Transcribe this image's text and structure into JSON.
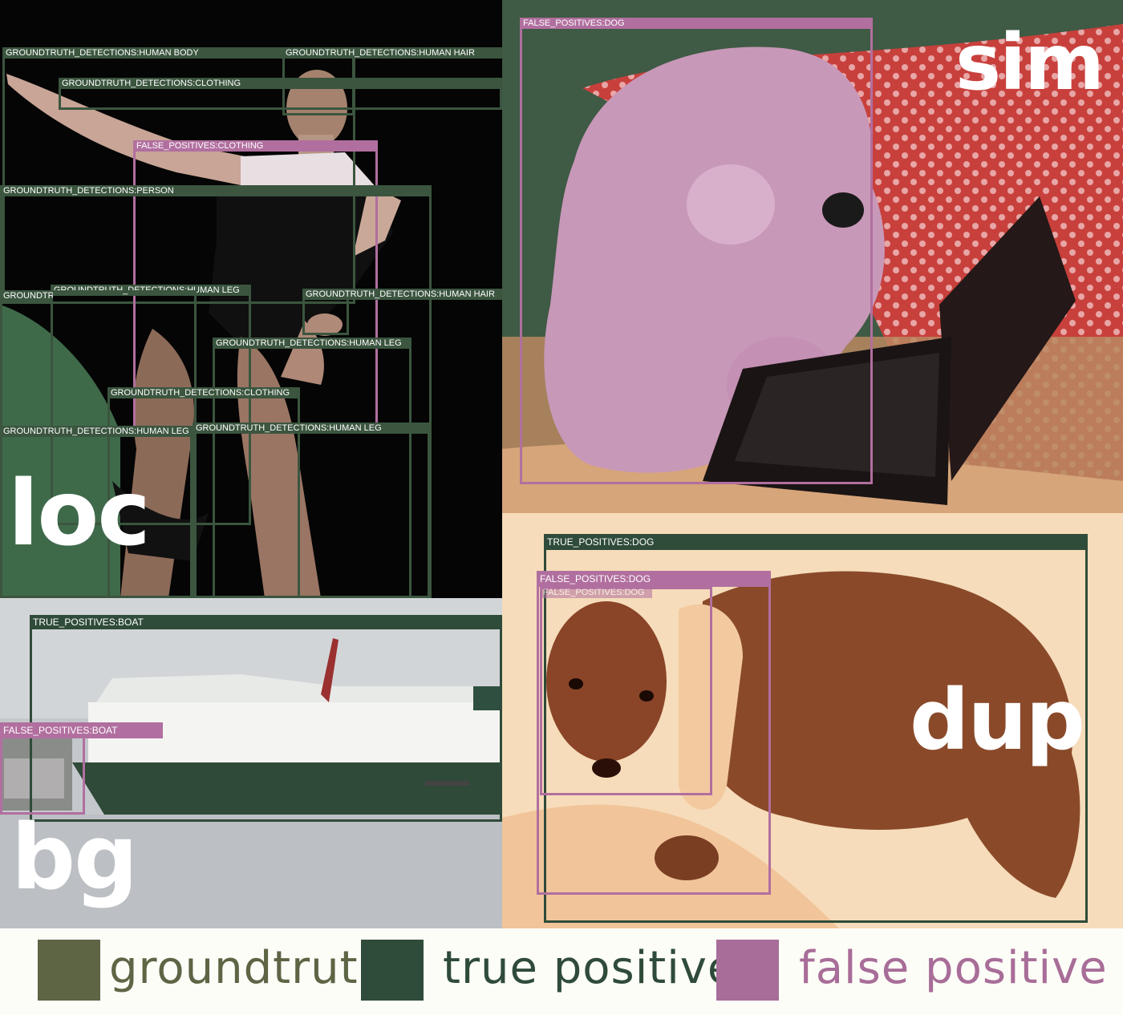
{
  "panels": {
    "loc": {
      "label": "loc",
      "boxes": [
        {
          "kind": "gt",
          "text": "GROUNDTRUTH_DETECTIONS:HUMAN BODY"
        },
        {
          "kind": "gt",
          "text": "GROUNDTRUTH_DETECTIONS:HUMAN HAIR"
        },
        {
          "kind": "gt",
          "text": "GROUNDTRUTH_DETECTIONS:CLOTHING"
        },
        {
          "kind": "fp",
          "text": "FALSE_POSITIVES:CLOTHING"
        },
        {
          "kind": "gt",
          "text": "GROUNDTRUTH_DETECTIONS:PERSON"
        },
        {
          "kind": "gt",
          "text": "GROUNDTRUTH_DETECTIONS:HUMAN LEG"
        },
        {
          "kind": "gt",
          "text": "GROUNDTRUTH_DETECTIONS:HUMAN BODY"
        },
        {
          "kind": "gt",
          "text": "GROUNDTRUTH_DETECTIONS:HUMAN HAIR"
        },
        {
          "kind": "gt",
          "text": "GROUNDTRUTH_DETECTIONS:HUMAN LEG"
        },
        {
          "kind": "gt",
          "text": "GROUNDTRUTH_DETECTIONS:CLOTHING"
        },
        {
          "kind": "gt",
          "text": "GROUNDTRUTH_DETECTIONS:HUMAN LEG"
        },
        {
          "kind": "gt",
          "text": "GROUNDTRUTH_DETECTIONS:HUMAN LEG"
        }
      ]
    },
    "sim": {
      "label": "sim",
      "boxes": [
        {
          "kind": "fp",
          "text": "FALSE_POSITIVES:DOG"
        }
      ]
    },
    "bg": {
      "label": "bg",
      "boxes": [
        {
          "kind": "tp",
          "text": "TRUE_POSITIVES:BOAT"
        },
        {
          "kind": "fp",
          "text": "FALSE_POSITIVES:BOAT"
        }
      ]
    },
    "dup": {
      "label": "dup",
      "boxes": [
        {
          "kind": "tp",
          "text": "TRUE_POSITIVES:DOG"
        },
        {
          "kind": "fp",
          "text": "FALSE_POSITIVES:DOG"
        },
        {
          "kind": "fp",
          "text": "FALSE_POSITIVES:DOG"
        }
      ]
    }
  },
  "legend": {
    "items": [
      {
        "label": "groundtruth",
        "color": "#5d6545"
      },
      {
        "label": "true positive",
        "color": "#2f4b39"
      },
      {
        "label": "false positive",
        "color": "#a86d98"
      }
    ]
  }
}
